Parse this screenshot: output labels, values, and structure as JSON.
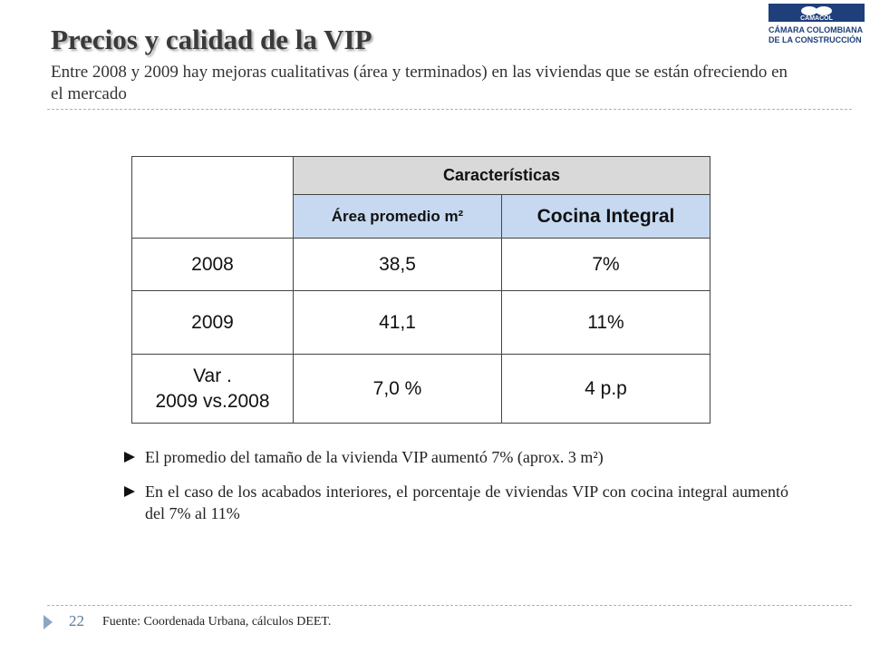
{
  "header": {
    "title": "Precios y calidad de la VIP",
    "subtitle": "Entre 2008 y 2009 hay mejoras cualitativas (área y terminados) en las viviendas que se están ofreciendo en el mercado"
  },
  "logo": {
    "name": "CAMACOL",
    "line1": "CÁMARA COLOMBIANA",
    "line2": "DE LA CONSTRUCCIÓN"
  },
  "table": {
    "group_header": "Características",
    "columns": [
      "Área promedio m²",
      "Cocina Integral"
    ],
    "rows": [
      [
        "2008",
        "38,5",
        "7%"
      ],
      [
        "2009",
        "41,1",
        "11%"
      ],
      [
        "Var .\n2009 vs.2008",
        "7,0 %",
        "4 p.p"
      ]
    ]
  },
  "bullets": [
    "El promedio del tamaño de la vivienda VIP aumentó 7% (aprox. 3 m²)",
    "En el caso de los acabados interiores, el porcentaje de viviendas VIP con cocina integral aumentó del 7% al 11%"
  ],
  "footer": {
    "page": "22",
    "source": "Fuente: Coordenada Urbana, cálculos DEET."
  }
}
